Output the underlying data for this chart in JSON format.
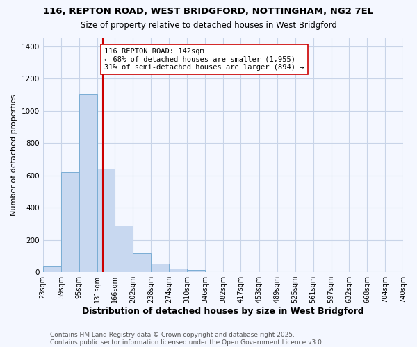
{
  "title1": "116, REPTON ROAD, WEST BRIDGFORD, NOTTINGHAM, NG2 7EL",
  "title2": "Size of property relative to detached houses in West Bridgford",
  "xlabel": "Distribution of detached houses by size in West Bridgford",
  "ylabel": "Number of detached properties",
  "footer1": "Contains HM Land Registry data © Crown copyright and database right 2025.",
  "footer2": "Contains public sector information licensed under the Open Government Licence v3.0.",
  "bin_labels": [
    "23sqm",
    "59sqm",
    "95sqm",
    "131sqm",
    "166sqm",
    "202sqm",
    "238sqm",
    "274sqm",
    "310sqm",
    "346sqm",
    "382sqm",
    "417sqm",
    "453sqm",
    "489sqm",
    "525sqm",
    "561sqm",
    "597sqm",
    "632sqm",
    "668sqm",
    "704sqm",
    "740sqm"
  ],
  "bin_edges": [
    23,
    59,
    95,
    131,
    166,
    202,
    238,
    274,
    310,
    346,
    382,
    417,
    453,
    489,
    525,
    561,
    597,
    632,
    668,
    704,
    740
  ],
  "bar_heights": [
    35,
    620,
    1100,
    640,
    290,
    115,
    50,
    20,
    15,
    0,
    0,
    0,
    0,
    0,
    0,
    0,
    0,
    0,
    0,
    0
  ],
  "bar_color": "#c8d8f0",
  "bar_edge_color": "#7aadd4",
  "property_size": 142,
  "vline_color": "#cc0000",
  "annotation_line1": "116 REPTON ROAD: 142sqm",
  "annotation_line2": "← 68% of detached houses are smaller (1,955)",
  "annotation_line3": "31% of semi-detached houses are larger (894) →",
  "annotation_box_color": "#ffffff",
  "annotation_box_edge": "#cc0000",
  "ylim": [
    0,
    1450
  ],
  "yticks": [
    0,
    200,
    400,
    600,
    800,
    1000,
    1200,
    1400
  ],
  "bg_color": "#f4f7ff",
  "grid_color": "#c8d4e8",
  "title1_fontsize": 9.5,
  "title2_fontsize": 8.5,
  "xlabel_fontsize": 9,
  "ylabel_fontsize": 8,
  "tick_fontsize": 7,
  "annot_fontsize": 7.5,
  "footer_fontsize": 6.5
}
